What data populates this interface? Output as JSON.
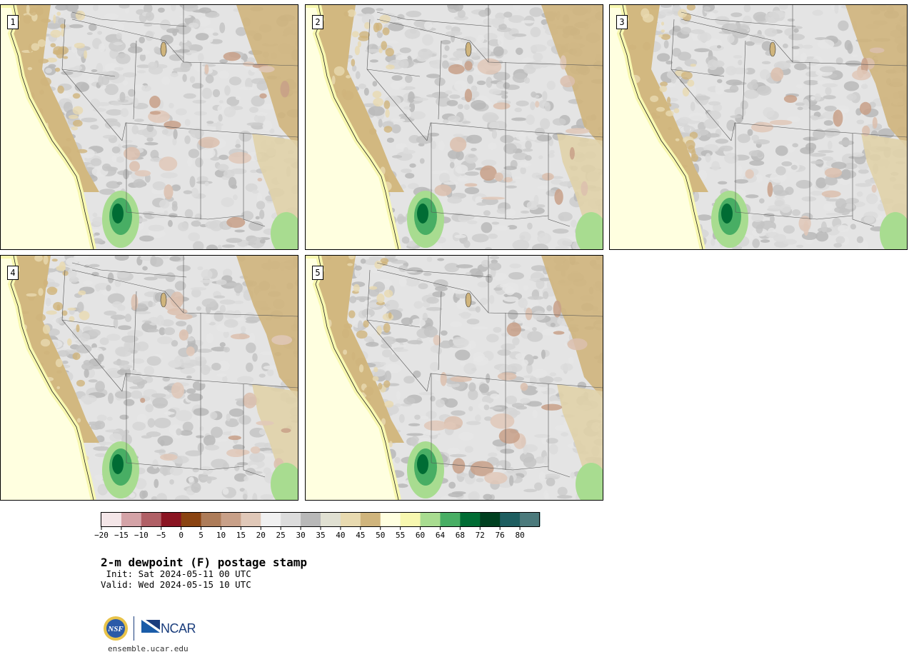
{
  "panels": [
    {
      "label": "1"
    },
    {
      "label": "2"
    },
    {
      "label": "3"
    },
    {
      "label": "4"
    },
    {
      "label": "5"
    }
  ],
  "colorbar": {
    "ticks": [
      "−20",
      "−15",
      "−10",
      "−5",
      "0",
      "5",
      "10",
      "15",
      "20",
      "25",
      "30",
      "35",
      "40",
      "45",
      "50",
      "55",
      "60",
      "64",
      "68",
      "72",
      "76",
      "80"
    ],
    "colors": [
      "#f4e6e8",
      "#d4a3a7",
      "#b06066",
      "#8a1522",
      "#8a4412",
      "#ad7c59",
      "#c8a088",
      "#e0c8b8",
      "#f0f0f0",
      "#dcdcdc",
      "#b8b8b8",
      "#e0e0d2",
      "#e8dab0",
      "#cfb47c",
      "#ffffe0",
      "#f8f8b0",
      "#a8dc90",
      "#48ae64",
      "#006c34",
      "#004020",
      "#1e5e60",
      "#4c7a7c"
    ]
  },
  "title": "2-m dewpoint (F) postage stamp",
  "init": " Init: Sat 2024-05-11 00 UTC",
  "valid": "Valid: Wed 2024-05-15 10 UTC",
  "logos": {
    "nsf": "NSF",
    "ncar": "NCAR"
  },
  "url": "ensemble.ucar.edu"
}
